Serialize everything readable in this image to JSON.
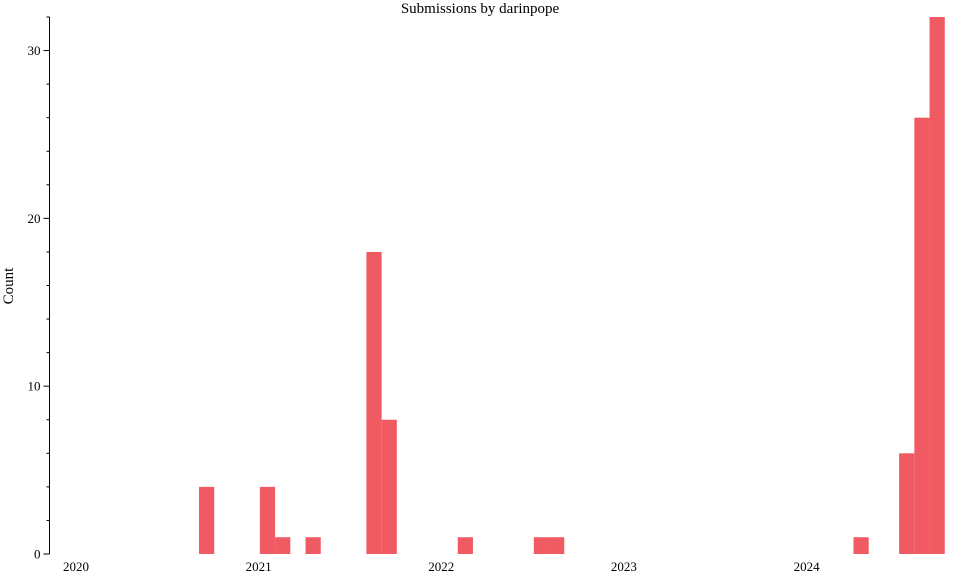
{
  "chart_data": {
    "type": "bar",
    "title": "Submissions by darinpope",
    "xlabel": "",
    "ylabel": "Count",
    "color": "#f05a63",
    "ylim": [
      0,
      32
    ],
    "y_ticks": [
      0,
      10,
      20,
      30
    ],
    "y_tick_labels": [
      "0",
      "10",
      "20",
      "30"
    ],
    "x_range": [
      "2020-01-01",
      "2024-10-31"
    ],
    "x_ticks": [
      "2020-01-01",
      "2021-01-01",
      "2022-01-01",
      "2023-01-01",
      "2024-01-01"
    ],
    "x_tick_labels": [
      "2020",
      "2021",
      "2022",
      "2023",
      "2024"
    ],
    "grid": false,
    "legend": "none",
    "bins": [
      {
        "start": "2020-10",
        "end": "2020-11",
        "value": 4
      },
      {
        "start": "2021-02",
        "end": "2021-03",
        "value": 4
      },
      {
        "start": "2021-03",
        "end": "2021-04",
        "value": 1
      },
      {
        "start": "2021-05",
        "end": "2021-06",
        "value": 1
      },
      {
        "start": "2021-09",
        "end": "2021-10",
        "value": 18
      },
      {
        "start": "2021-10",
        "end": "2021-11",
        "value": 8
      },
      {
        "start": "2022-03",
        "end": "2022-04",
        "value": 1
      },
      {
        "start": "2022-08",
        "end": "2022-09",
        "value": 1
      },
      {
        "start": "2022-09",
        "end": "2022-10",
        "value": 1
      },
      {
        "start": "2024-05",
        "end": "2024-06",
        "value": 1
      },
      {
        "start": "2024-08",
        "end": "2024-09",
        "value": 6
      },
      {
        "start": "2024-09",
        "end": "2024-10",
        "value": 26
      },
      {
        "start": "2024-10",
        "end": "2024-11",
        "value": 32
      }
    ]
  }
}
